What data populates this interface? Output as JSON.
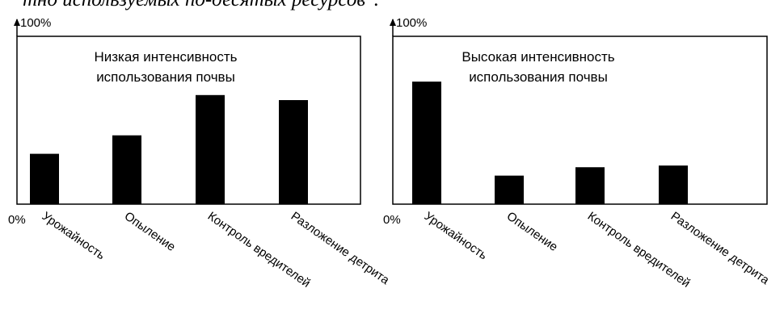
{
  "header": {
    "text": "тно используемых по-десятых ресурсов\"."
  },
  "chart_data": [
    {
      "type": "bar",
      "title": "Низкая интенсивность использования почвы",
      "title_lines": [
        "Низкая интенсивность",
        "использования почвы"
      ],
      "y_top_label": "100%",
      "y_bottom_label": "0%",
      "ylim": [
        0,
        100
      ],
      "categories": [
        "Урожайность",
        "Опыление",
        "Контроль вредителей",
        "Разложение детрита"
      ],
      "values": [
        30,
        41,
        65,
        62
      ],
      "bar_color": "#000000"
    },
    {
      "type": "bar",
      "title": "Высокая интенсивность использования почвы",
      "title_lines": [
        "Высокая интенсивность",
        "использования почвы"
      ],
      "y_top_label": "100%",
      "y_bottom_label": "0%",
      "ylim": [
        0,
        100
      ],
      "categories": [
        "Урожайность",
        "Опыление",
        "Контроль вредителей",
        "Разложение детрита"
      ],
      "values": [
        73,
        17,
        22,
        23
      ],
      "bar_color": "#000000"
    }
  ]
}
